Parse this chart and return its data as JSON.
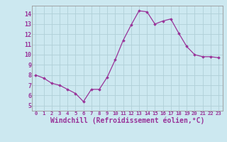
{
  "x": [
    0,
    1,
    2,
    3,
    4,
    5,
    6,
    7,
    8,
    9,
    10,
    11,
    12,
    13,
    14,
    15,
    16,
    17,
    18,
    19,
    20,
    21,
    22,
    23
  ],
  "y": [
    8.0,
    7.7,
    7.2,
    7.0,
    6.6,
    6.2,
    5.4,
    6.6,
    6.6,
    7.8,
    9.5,
    11.4,
    12.9,
    14.3,
    14.2,
    13.0,
    13.3,
    13.5,
    12.1,
    10.8,
    10.0,
    9.8,
    9.8,
    9.7
  ],
  "line_color": "#993399",
  "marker": "D",
  "marker_size": 1.8,
  "line_width": 0.9,
  "xlabel": "Windchill (Refroidissement éolien,°C)",
  "ylim": [
    4.5,
    14.8
  ],
  "xlim": [
    -0.5,
    23.5
  ],
  "yticks": [
    5,
    6,
    7,
    8,
    9,
    10,
    11,
    12,
    13,
    14
  ],
  "xticks": [
    0,
    1,
    2,
    3,
    4,
    5,
    6,
    7,
    8,
    9,
    10,
    11,
    12,
    13,
    14,
    15,
    16,
    17,
    18,
    19,
    20,
    21,
    22,
    23
  ],
  "xtick_labels": [
    "0",
    "1",
    "2",
    "3",
    "4",
    "5",
    "6",
    "7",
    "8",
    "9",
    "10",
    "11",
    "12",
    "13",
    "14",
    "15",
    "16",
    "17",
    "18",
    "19",
    "20",
    "21",
    "22",
    "23"
  ],
  "background_color": "#cce8f0",
  "grid_color": "#b0d0d8",
  "tick_color": "#993399",
  "label_color": "#993399",
  "spine_color": "#999999"
}
